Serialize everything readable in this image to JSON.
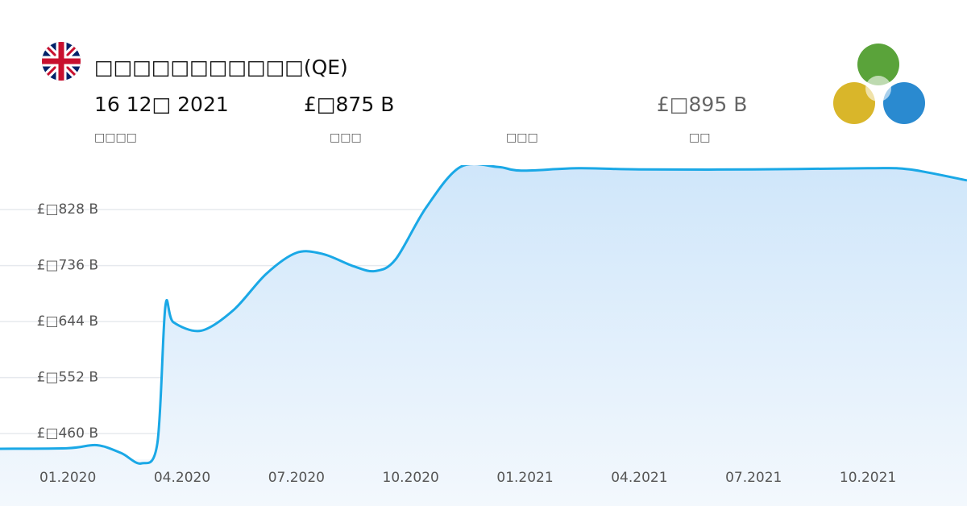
{
  "header": {
    "title": "□□□□□□□□□□□(QE)",
    "date": "16 12□ 2021",
    "date_label": "□□□□",
    "actual": "£□875 B",
    "actual_label": "□□□",
    "forecast_label": "□□□",
    "previous": "£□895 B",
    "previous_label": "□□"
  },
  "chart_data": {
    "type": "area",
    "color": "#1aa8e6",
    "grid": true,
    "x": [
      -1.78,
      0,
      0.76,
      1.4,
      1.93,
      2.35,
      2.56,
      2.77,
      3.5,
      4.35,
      5.2,
      6,
      6.7,
      7.5,
      8.06,
      8.6,
      9.4,
      10.3,
      11.3,
      11.9,
      13.4,
      15,
      18,
      21,
      22.1,
      23.6
    ],
    "values": [
      435,
      436,
      441,
      428,
      411,
      444,
      669,
      643,
      629,
      663,
      722,
      757,
      755,
      735,
      727,
      746,
      831,
      898,
      898,
      892,
      896,
      894,
      894,
      896,
      894,
      876
    ],
    "xlim": [
      -1.78,
      23.6
    ],
    "xticks": [
      {
        "value": 0,
        "label": "01.2020"
      },
      {
        "value": 3,
        "label": "04.2020"
      },
      {
        "value": 6,
        "label": "07.2020"
      },
      {
        "value": 9,
        "label": "10.2020"
      },
      {
        "value": 12,
        "label": "01.2021"
      },
      {
        "value": 15,
        "label": "04.2021"
      },
      {
        "value": 18,
        "label": "07.2021"
      },
      {
        "value": 21,
        "label": "10.2021"
      }
    ],
    "ylim": [
      341,
      901
    ],
    "yticks": [
      {
        "value": 460,
        "label": "£□460 B"
      },
      {
        "value": 552,
        "label": "£□552 B"
      },
      {
        "value": 644,
        "label": "£□644 B"
      },
      {
        "value": 736,
        "label": "£□736 B"
      },
      {
        "value": 828,
        "label": "£□828 B"
      }
    ]
  }
}
